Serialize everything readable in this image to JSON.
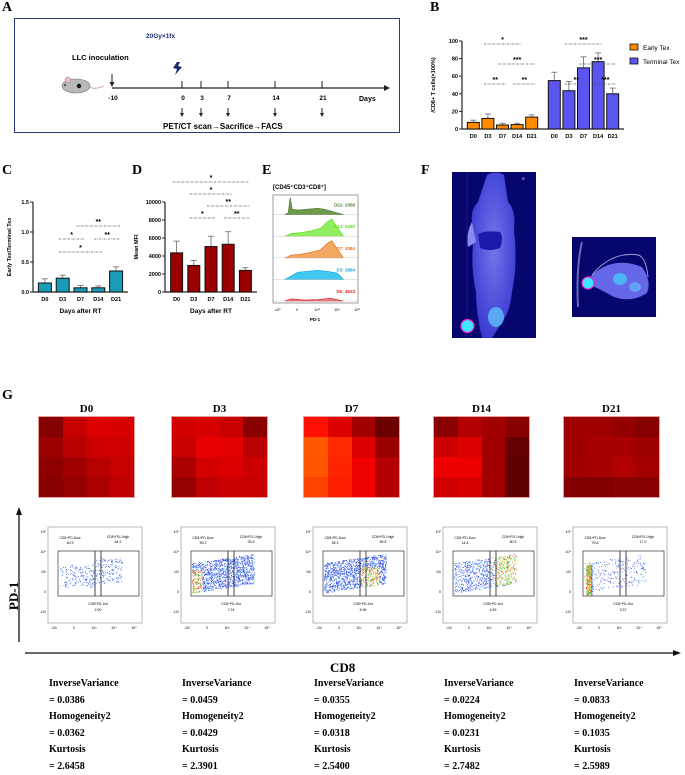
{
  "panel_labels": {
    "A": "A",
    "B": "B",
    "C": "C",
    "D": "D",
    "E": "E",
    "F": "F",
    "G": "G"
  },
  "panelA": {
    "inoculation_label": "LLC inoculation",
    "dose_label": "20Gy×1fx",
    "day_ticks": [
      "-10",
      "0",
      "3",
      "7",
      "14",
      "21"
    ],
    "axis_unit": "Days",
    "procedure": "PET/CT scan→Sacrifice→FACS",
    "icons": [
      "mouse-icon",
      "lightning-icon"
    ]
  },
  "chart_data": [
    {
      "id": "B",
      "type": "bar",
      "categories": [
        "D0",
        "D3",
        "D7",
        "D14",
        "D21"
      ],
      "series": [
        {
          "name": "Early Tex",
          "color": "#ff8c00",
          "values": [
            7.5,
            12,
            4.5,
            5,
            13.5
          ],
          "errors": [
            2.5,
            5,
            2,
            1.5,
            2.5
          ]
        },
        {
          "name": "Terminal Tex",
          "color": "#5a55f0",
          "values": [
            55,
            43.5,
            69.5,
            76.5,
            40
          ],
          "errors": [
            9.5,
            10.5,
            12.5,
            10,
            6.5
          ]
        }
      ],
      "ylabel": "/CD8+ T cells(×100%)",
      "xlabel": "",
      "yticks": [
        0,
        20,
        40,
        60,
        80,
        100
      ],
      "ylim": [
        0,
        100
      ],
      "legend_position": "right",
      "significance": [
        {
          "series": 0,
          "from": 1,
          "to": 2,
          "label": "**",
          "level": 1
        },
        {
          "series": 0,
          "from": 3,
          "to": 4,
          "label": "**",
          "level": 1
        },
        {
          "series": 0,
          "from": 2,
          "to": 4,
          "label": "***",
          "level": 2
        },
        {
          "series": 0,
          "from": 1,
          "to": 3,
          "label": "*",
          "level": 3
        },
        {
          "series": 1,
          "from": 1,
          "to": 2,
          "label": "**",
          "level": 1
        },
        {
          "series": 1,
          "from": 3,
          "to": 4,
          "label": "***",
          "level": 1
        },
        {
          "series": 1,
          "from": 2,
          "to": 4,
          "label": "***",
          "level": 2
        },
        {
          "series": 1,
          "from": 1,
          "to": 3,
          "label": "***",
          "level": 3
        }
      ]
    },
    {
      "id": "C",
      "type": "bar",
      "categories": [
        "D0",
        "D3",
        "D7",
        "D14",
        "D21"
      ],
      "values": [
        0.15,
        0.23,
        0.07,
        0.07,
        0.35
      ],
      "errors": [
        0.07,
        0.05,
        0.04,
        0.03,
        0.07
      ],
      "color": "#1a9bb8",
      "ylabel": "Early Tex/Terminal Tex",
      "xlabel": "Days after RT",
      "yticks": [
        0.0,
        0.5,
        1.0,
        1.5
      ],
      "ylim": [
        0,
        1.5
      ],
      "significance": [
        {
          "from": 1,
          "to": 2,
          "label": "*",
          "level": 1
        },
        {
          "from": 3,
          "to": 4,
          "label": "**",
          "level": 1
        },
        {
          "from": 1,
          "to": 3,
          "label": "*",
          "level": 0
        },
        {
          "from": 2,
          "to": 4,
          "label": "**",
          "level": 2
        }
      ]
    },
    {
      "id": "D",
      "type": "bar",
      "categories": [
        "D0",
        "D3",
        "D7",
        "D14",
        "D21"
      ],
      "values": [
        4350,
        2950,
        5050,
        5300,
        2400
      ],
      "errors": [
        1300,
        550,
        1150,
        1400,
        300
      ],
      "color": "#9b0000",
      "ylabel": "Mean MFI",
      "xlabel": "Days after RT",
      "yticks": [
        0,
        2000,
        4000,
        6000,
        8000,
        10000
      ],
      "ylim": [
        0,
        10000
      ],
      "significance": [
        {
          "from": 1,
          "to": 2,
          "label": "*",
          "level": 1
        },
        {
          "from": 3,
          "to": 4,
          "label": "**",
          "level": 1
        },
        {
          "from": 2,
          "to": 4,
          "label": "**",
          "level": 2
        },
        {
          "from": 1,
          "to": 3,
          "label": "*",
          "level": 3
        },
        {
          "from": 0,
          "to": 4,
          "label": "*",
          "level": 4
        }
      ]
    },
    {
      "id": "E",
      "type": "area",
      "title": "[CD45⁺CD3⁺CD8⁺]",
      "xlabel": "PD-1",
      "xticks": [
        "-10³",
        "0",
        "10³",
        "10⁴",
        "10⁵"
      ],
      "series": [
        {
          "name": "D21",
          "mfi": "2056",
          "color": "#4a7a2a",
          "fill": "#6f9a4a",
          "shape": "early-peak"
        },
        {
          "name": "D14",
          "mfi": "5450",
          "color": "#66dd22",
          "fill": "#90ee60",
          "shape": "late-peak"
        },
        {
          "name": "D7",
          "mfi": "4084",
          "color": "#e07020",
          "fill": "#f4a860",
          "shape": "late-peak"
        },
        {
          "name": "D3",
          "mfi": "2864",
          "color": "#18a8e0",
          "fill": "#40c8f0",
          "shape": "flat"
        },
        {
          "name": "D0",
          "mfi": "4523",
          "color": "#e02020",
          "fill": "#f08080",
          "shape": "tiny"
        }
      ]
    }
  ],
  "panelF": {
    "image_label": "S",
    "views": [
      "coronal-pet-ct",
      "axial-pet-ct"
    ]
  },
  "panelG": {
    "y_axis_label": "PD-1",
    "x_axis_label": "CD8",
    "groups": [
      {
        "day": "D0",
        "heatmap": [
          "#850000",
          "#c40000",
          "#de0000",
          "#d60000",
          "#9c0000",
          "#bb0000",
          "#cc0000",
          "#d00000",
          "#8e0000",
          "#a00000",
          "#b80000",
          "#c60000",
          "#880000",
          "#960000",
          "#ac0000",
          "#c00000"
        ],
        "gates": {
          "low_label": "CD8+PD-1low",
          "low": "40.9",
          "high_label": "CD8+PD-1high",
          "high": "54.2",
          "int_label": "CD8+PD-1int",
          "int": "4.90"
        },
        "density": "sparse",
        "metrics": {
          "iv_label": "InverseVariance",
          "iv": "= 0.0386",
          "h_label": "Homogeneity2",
          "h": "= 0.0362",
          "k_label": "Kurtosis",
          "k": "= 2.6458"
        }
      },
      {
        "day": "D3",
        "heatmap": [
          "#d40000",
          "#d80000",
          "#c80000",
          "#8a0000",
          "#c80000",
          "#e60000",
          "#e20000",
          "#b80000",
          "#aa0000",
          "#d40000",
          "#dc0000",
          "#cc0000",
          "#960000",
          "#c00000",
          "#cc0000",
          "#c80000"
        ],
        "gates": {
          "low_label": "CD8+PD-1low",
          "low": "59.2",
          "high_label": "CD8+PD-1high",
          "high": "33.5",
          "int_label": "CD8+PD-1int",
          "int": "7.24"
        },
        "density": "dense",
        "metrics": {
          "iv_label": "InverseVariance",
          "iv": "= 0.0459",
          "h_label": "Homogeneity2",
          "h": "= 0.0429",
          "k_label": "Kurtosis",
          "k": "= 2.3901"
        }
      },
      {
        "day": "D7",
        "heatmap": [
          "#ff1000",
          "#dc0000",
          "#a20000",
          "#6a0000",
          "#ff5800",
          "#ff2800",
          "#dc0000",
          "#9a0000",
          "#ff5400",
          "#ff2400",
          "#f00000",
          "#b40000",
          "#ff4400",
          "#ff2000",
          "#f00000",
          "#b40000"
        ],
        "gates": {
          "low_label": "CD8+PD-1low",
          "low": "28.3",
          "high_label": "CD8+PD-1high",
          "high": "65.8",
          "int_label": "CD8+PD-1int",
          "int": "5.96"
        },
        "density": "dense",
        "metrics": {
          "iv_label": "InverseVariance",
          "iv": "= 0.0355",
          "h_label": "Homogeneity2",
          "h": "= 0.0318",
          "k_label": "Kurtosis",
          "k": "= 2.5400"
        }
      },
      {
        "day": "D14",
        "heatmap": [
          "#8a0000",
          "#b40000",
          "#a20000",
          "#880000",
          "#cc0000",
          "#dc0000",
          "#a20000",
          "#640000",
          "#ee0000",
          "#ee0000",
          "#a20000",
          "#600000",
          "#d00000",
          "#d80000",
          "#a20000",
          "#600000"
        ],
        "gates": {
          "low_label": "CD8+PD-1low",
          "low": "14.8",
          "high_label": "CD8+PD-1high",
          "high": "80.5",
          "int_label": "CD8+PD-1int",
          "int": "4.59"
        },
        "density": "medium",
        "metrics": {
          "iv_label": "InverseVariance",
          "iv": "= 0.0224",
          "h_label": "Homogeneity2",
          "h": "= 0.0231",
          "k_label": "Kurtosis",
          "k": "= 2.7482"
        }
      },
      {
        "day": "D21",
        "heatmap": [
          "#a00000",
          "#a00000",
          "#940000",
          "#860000",
          "#a00000",
          "#a80000",
          "#a80000",
          "#9c0000",
          "#a00000",
          "#a40000",
          "#b00000",
          "#a40000",
          "#840000",
          "#840000",
          "#880000",
          "#880000"
        ],
        "gates": {
          "low_label": "CD8+PD-1low",
          "low": "79.6",
          "high_label": "CD8+PD-1high",
          "high": "17.0",
          "int_label": "CD8+PD-1int",
          "int": "3.37"
        },
        "density": "left",
        "metrics": {
          "iv_label": "InverseVariance",
          "iv": "= 0.0833",
          "h_label": "Homogeneity2",
          "h": "= 0.1035",
          "k_label": "Kurtosis",
          "k": "= 2.5989"
        }
      }
    ],
    "flow_axis_ticks": [
      "-10³",
      "0",
      "10³",
      "10⁴",
      "10⁵"
    ]
  }
}
